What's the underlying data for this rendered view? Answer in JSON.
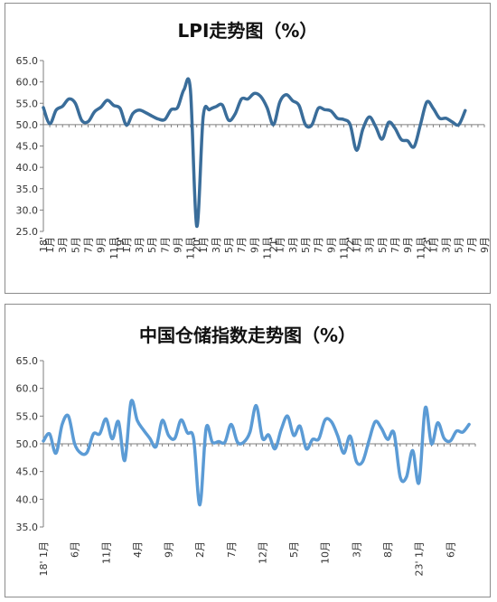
{
  "chart_data": [
    {
      "type": "line",
      "title": "LPI走势图（%）",
      "ylim": [
        25.0,
        65.0
      ],
      "yticks": [
        "25.0",
        "30.0",
        "35.0",
        "40.0",
        "45.0",
        "50.0",
        "55.0",
        "60.0",
        "65.0"
      ],
      "xaxis_crosses_at": 50.0,
      "line_color": "#3a6d9a",
      "x_tick_labels": [
        {
          "i": 0,
          "label": "18'"
        },
        {
          "i": 1,
          "label": "1月"
        },
        {
          "i": 3,
          "label": "3月"
        },
        {
          "i": 5,
          "label": "5月"
        },
        {
          "i": 7,
          "label": "7月"
        },
        {
          "i": 9,
          "label": "9月"
        },
        {
          "i": 11,
          "label": "11月"
        },
        {
          "i": 12,
          "label": "19'"
        },
        {
          "i": 13,
          "label": "1月"
        },
        {
          "i": 15,
          "label": "3月"
        },
        {
          "i": 17,
          "label": "5月"
        },
        {
          "i": 19,
          "label": "7月"
        },
        {
          "i": 21,
          "label": "9月"
        },
        {
          "i": 23,
          "label": "11月"
        },
        {
          "i": 24,
          "label": "20'"
        },
        {
          "i": 25,
          "label": "1月"
        },
        {
          "i": 27,
          "label": "3月"
        },
        {
          "i": 29,
          "label": "5月"
        },
        {
          "i": 31,
          "label": "7月"
        },
        {
          "i": 33,
          "label": "9月"
        },
        {
          "i": 35,
          "label": "11月"
        },
        {
          "i": 36,
          "label": "21'"
        },
        {
          "i": 37,
          "label": "1月"
        },
        {
          "i": 39,
          "label": "3月"
        },
        {
          "i": 41,
          "label": "5月"
        },
        {
          "i": 43,
          "label": "7月"
        },
        {
          "i": 45,
          "label": "9月"
        },
        {
          "i": 47,
          "label": "11月"
        },
        {
          "i": 48,
          "label": "22'"
        },
        {
          "i": 49,
          "label": "1月"
        },
        {
          "i": 51,
          "label": "3月"
        },
        {
          "i": 53,
          "label": "5月"
        },
        {
          "i": 55,
          "label": "7月"
        },
        {
          "i": 57,
          "label": "9月"
        },
        {
          "i": 59,
          "label": "11月"
        },
        {
          "i": 60,
          "label": "23'"
        },
        {
          "i": 61,
          "label": "1月"
        },
        {
          "i": 63,
          "label": "3月"
        },
        {
          "i": 65,
          "label": "5月"
        },
        {
          "i": 67,
          "label": "7月"
        },
        {
          "i": 69,
          "label": "9月"
        }
      ],
      "values": [
        54.0,
        50.2,
        53.4,
        54.3,
        56.0,
        55.0,
        51.0,
        50.7,
        53.0,
        54.1,
        55.7,
        54.5,
        53.8,
        49.9,
        52.6,
        53.4,
        52.8,
        52.0,
        51.3,
        51.2,
        53.5,
        54.0,
        58.2,
        58.2,
        26.2,
        51.8,
        53.5,
        54.2,
        54.6,
        51.0,
        52.5,
        56.0,
        56.0,
        57.3,
        56.6,
        54.0,
        50.0,
        55.3,
        57.0,
        55.6,
        54.5,
        50.0,
        49.9,
        53.8,
        53.5,
        53.2,
        51.5,
        51.2,
        50.0,
        44.0,
        49.0,
        51.8,
        49.5,
        46.6,
        50.5,
        49.2,
        46.5,
        46.2,
        44.8,
        50.0,
        55.3,
        53.8,
        51.5,
        51.5,
        50.6,
        50.0,
        53.3
      ],
      "x_count": 70
    },
    {
      "type": "line",
      "title": "中国仓储指数走势图（%）",
      "ylim": [
        35.0,
        65.0
      ],
      "yticks": [
        "35.0",
        "40.0",
        "45.0",
        "50.0",
        "55.0",
        "60.0",
        "65.0"
      ],
      "xaxis_crosses_at": 50.0,
      "line_color": "#5b9bd5",
      "x_tick_labels": [
        {
          "i": 0,
          "label": "18' 1月"
        },
        {
          "i": 5,
          "label": "6月"
        },
        {
          "i": 10,
          "label": "11月"
        },
        {
          "i": 15,
          "label": "4月"
        },
        {
          "i": 20,
          "label": "9月"
        },
        {
          "i": 25,
          "label": "2月"
        },
        {
          "i": 30,
          "label": "7月"
        },
        {
          "i": 35,
          "label": "12月"
        },
        {
          "i": 40,
          "label": "5月"
        },
        {
          "i": 45,
          "label": "10月"
        },
        {
          "i": 50,
          "label": "3月"
        },
        {
          "i": 55,
          "label": "8月"
        },
        {
          "i": 60,
          "label": "23' 1月"
        },
        {
          "i": 65,
          "label": "6月"
        }
      ],
      "values": [
        50.5,
        51.8,
        48.3,
        53.5,
        55.0,
        50.0,
        48.3,
        48.5,
        51.8,
        51.8,
        54.5,
        50.9,
        54.0,
        47.0,
        57.6,
        54.2,
        52.5,
        51.0,
        49.5,
        54.2,
        51.5,
        51.0,
        54.3,
        52.0,
        50.9,
        39.0,
        52.8,
        50.3,
        50.4,
        50.3,
        53.5,
        50.3,
        50.3,
        52.1,
        56.9,
        51.0,
        51.6,
        49.1,
        52.6,
        55.0,
        51.5,
        53.2,
        49.1,
        50.8,
        50.9,
        54.3,
        54.0,
        51.5,
        48.3,
        51.4,
        46.8,
        46.8,
        50.5,
        54.0,
        52.8,
        50.8,
        52.0,
        44.0,
        44.0,
        48.8,
        43.0,
        56.5,
        50.0,
        53.8,
        51.0,
        50.5,
        52.3,
        52.1,
        53.5
      ],
      "x_count": 70
    }
  ]
}
